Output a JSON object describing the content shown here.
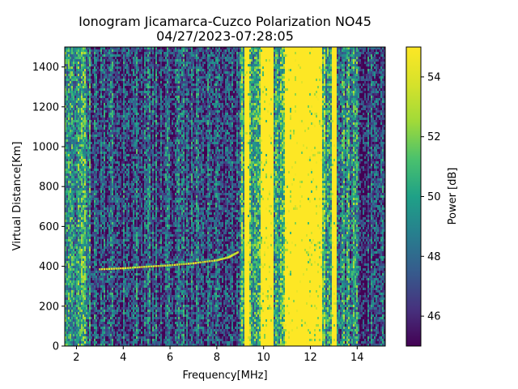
{
  "chart_data": {
    "type": "heatmap",
    "title": "Ionogram Jicamarca-Cuzco Polarization NO45",
    "subtitle": "04/27/2023-07:28:05",
    "xlabel": "Frequency[MHz]",
    "ylabel": "Virtual Distance[Km]",
    "xlim": [
      1.5,
      15.2
    ],
    "ylim": [
      0,
      1500
    ],
    "x_ticks": [
      2,
      4,
      6,
      8,
      10,
      12,
      14
    ],
    "y_ticks": [
      0,
      200,
      400,
      600,
      800,
      1000,
      1200,
      1400
    ],
    "colorbar": {
      "label": "Power [dB]",
      "range": [
        45,
        55
      ],
      "ticks": [
        46,
        48,
        50,
        52,
        54
      ],
      "colormap": "viridis"
    },
    "trace": {
      "points": [
        [
          3.0,
          385
        ],
        [
          4.0,
          390
        ],
        [
          5.0,
          398
        ],
        [
          6.0,
          405
        ],
        [
          7.0,
          415
        ],
        [
          8.0,
          430
        ],
        [
          8.5,
          445
        ],
        [
          8.9,
          470
        ]
      ]
    },
    "bright_bands_mhz": [
      [
        9.2,
        9.4
      ],
      [
        9.9,
        10.4
      ],
      [
        10.9,
        12.5
      ],
      [
        12.9,
        13.1
      ]
    ],
    "grid": false
  }
}
